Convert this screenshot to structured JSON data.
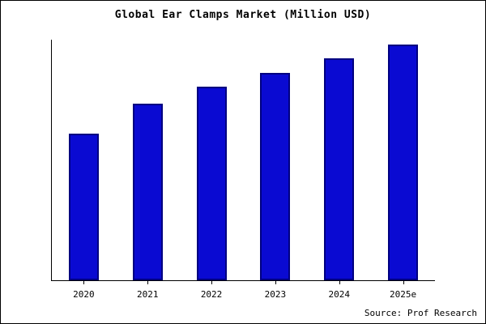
{
  "chart_data": {
    "type": "bar",
    "title": "Global Ear Clamps Market (Million USD)",
    "categories": [
      "2020",
      "2021",
      "2022",
      "2023",
      "2024",
      "2025e"
    ],
    "values": [
      62,
      75,
      82,
      88,
      94,
      100
    ],
    "xlabel": "",
    "ylabel": "",
    "ylim": [
      0,
      102
    ],
    "grid": false,
    "legend": false,
    "bar_color": "#0a0ad2",
    "bar_edge_color": "#000080"
  },
  "footer": {
    "source": "Source: Prof Research"
  }
}
